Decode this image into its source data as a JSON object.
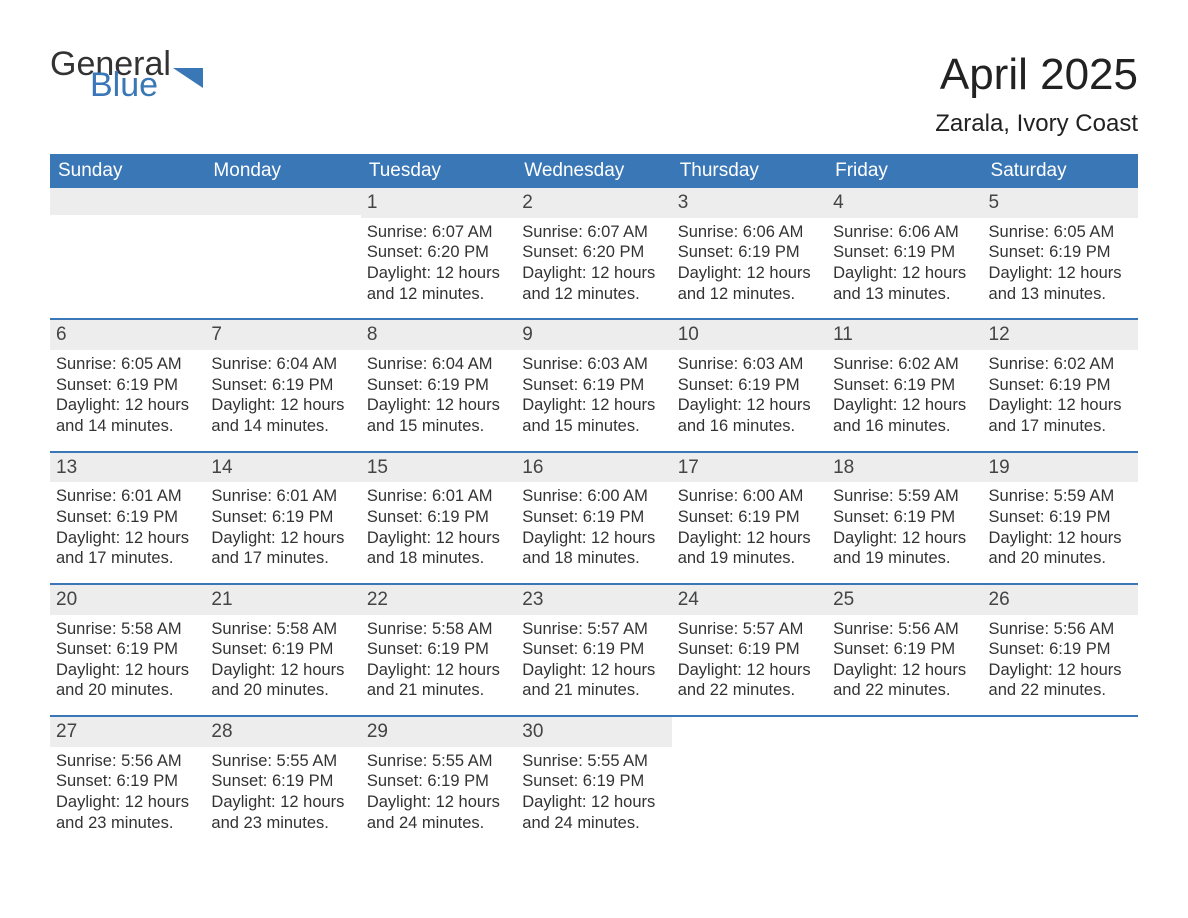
{
  "brand": {
    "word1": "General",
    "word2": "Blue",
    "accent_color": "#3a77b7"
  },
  "title": "April 2025",
  "location": "Zarala, Ivory Coast",
  "colors": {
    "header_bg": "#3a77b7",
    "header_text": "#ffffff",
    "daynum_bg": "#ededed",
    "text": "#333333",
    "week_border": "#3a77b7",
    "page_bg": "#ffffff"
  },
  "typography": {
    "title_fontsize": 44,
    "location_fontsize": 24,
    "dow_fontsize": 19,
    "daynum_fontsize": 19,
    "body_fontsize": 16.5
  },
  "days_of_week": [
    "Sunday",
    "Monday",
    "Tuesday",
    "Wednesday",
    "Thursday",
    "Friday",
    "Saturday"
  ],
  "weeks": [
    [
      {
        "n": "",
        "sunrise": "",
        "sunset": "",
        "daylight": ""
      },
      {
        "n": "",
        "sunrise": "",
        "sunset": "",
        "daylight": ""
      },
      {
        "n": "1",
        "sunrise": "Sunrise: 6:07 AM",
        "sunset": "Sunset: 6:20 PM",
        "daylight": "Daylight: 12 hours and 12 minutes."
      },
      {
        "n": "2",
        "sunrise": "Sunrise: 6:07 AM",
        "sunset": "Sunset: 6:20 PM",
        "daylight": "Daylight: 12 hours and 12 minutes."
      },
      {
        "n": "3",
        "sunrise": "Sunrise: 6:06 AM",
        "sunset": "Sunset: 6:19 PM",
        "daylight": "Daylight: 12 hours and 12 minutes."
      },
      {
        "n": "4",
        "sunrise": "Sunrise: 6:06 AM",
        "sunset": "Sunset: 6:19 PM",
        "daylight": "Daylight: 12 hours and 13 minutes."
      },
      {
        "n": "5",
        "sunrise": "Sunrise: 6:05 AM",
        "sunset": "Sunset: 6:19 PM",
        "daylight": "Daylight: 12 hours and 13 minutes."
      }
    ],
    [
      {
        "n": "6",
        "sunrise": "Sunrise: 6:05 AM",
        "sunset": "Sunset: 6:19 PM",
        "daylight": "Daylight: 12 hours and 14 minutes."
      },
      {
        "n": "7",
        "sunrise": "Sunrise: 6:04 AM",
        "sunset": "Sunset: 6:19 PM",
        "daylight": "Daylight: 12 hours and 14 minutes."
      },
      {
        "n": "8",
        "sunrise": "Sunrise: 6:04 AM",
        "sunset": "Sunset: 6:19 PM",
        "daylight": "Daylight: 12 hours and 15 minutes."
      },
      {
        "n": "9",
        "sunrise": "Sunrise: 6:03 AM",
        "sunset": "Sunset: 6:19 PM",
        "daylight": "Daylight: 12 hours and 15 minutes."
      },
      {
        "n": "10",
        "sunrise": "Sunrise: 6:03 AM",
        "sunset": "Sunset: 6:19 PM",
        "daylight": "Daylight: 12 hours and 16 minutes."
      },
      {
        "n": "11",
        "sunrise": "Sunrise: 6:02 AM",
        "sunset": "Sunset: 6:19 PM",
        "daylight": "Daylight: 12 hours and 16 minutes."
      },
      {
        "n": "12",
        "sunrise": "Sunrise: 6:02 AM",
        "sunset": "Sunset: 6:19 PM",
        "daylight": "Daylight: 12 hours and 17 minutes."
      }
    ],
    [
      {
        "n": "13",
        "sunrise": "Sunrise: 6:01 AM",
        "sunset": "Sunset: 6:19 PM",
        "daylight": "Daylight: 12 hours and 17 minutes."
      },
      {
        "n": "14",
        "sunrise": "Sunrise: 6:01 AM",
        "sunset": "Sunset: 6:19 PM",
        "daylight": "Daylight: 12 hours and 17 minutes."
      },
      {
        "n": "15",
        "sunrise": "Sunrise: 6:01 AM",
        "sunset": "Sunset: 6:19 PM",
        "daylight": "Daylight: 12 hours and 18 minutes."
      },
      {
        "n": "16",
        "sunrise": "Sunrise: 6:00 AM",
        "sunset": "Sunset: 6:19 PM",
        "daylight": "Daylight: 12 hours and 18 minutes."
      },
      {
        "n": "17",
        "sunrise": "Sunrise: 6:00 AM",
        "sunset": "Sunset: 6:19 PM",
        "daylight": "Daylight: 12 hours and 19 minutes."
      },
      {
        "n": "18",
        "sunrise": "Sunrise: 5:59 AM",
        "sunset": "Sunset: 6:19 PM",
        "daylight": "Daylight: 12 hours and 19 minutes."
      },
      {
        "n": "19",
        "sunrise": "Sunrise: 5:59 AM",
        "sunset": "Sunset: 6:19 PM",
        "daylight": "Daylight: 12 hours and 20 minutes."
      }
    ],
    [
      {
        "n": "20",
        "sunrise": "Sunrise: 5:58 AM",
        "sunset": "Sunset: 6:19 PM",
        "daylight": "Daylight: 12 hours and 20 minutes."
      },
      {
        "n": "21",
        "sunrise": "Sunrise: 5:58 AM",
        "sunset": "Sunset: 6:19 PM",
        "daylight": "Daylight: 12 hours and 20 minutes."
      },
      {
        "n": "22",
        "sunrise": "Sunrise: 5:58 AM",
        "sunset": "Sunset: 6:19 PM",
        "daylight": "Daylight: 12 hours and 21 minutes."
      },
      {
        "n": "23",
        "sunrise": "Sunrise: 5:57 AM",
        "sunset": "Sunset: 6:19 PM",
        "daylight": "Daylight: 12 hours and 21 minutes."
      },
      {
        "n": "24",
        "sunrise": "Sunrise: 5:57 AM",
        "sunset": "Sunset: 6:19 PM",
        "daylight": "Daylight: 12 hours and 22 minutes."
      },
      {
        "n": "25",
        "sunrise": "Sunrise: 5:56 AM",
        "sunset": "Sunset: 6:19 PM",
        "daylight": "Daylight: 12 hours and 22 minutes."
      },
      {
        "n": "26",
        "sunrise": "Sunrise: 5:56 AM",
        "sunset": "Sunset: 6:19 PM",
        "daylight": "Daylight: 12 hours and 22 minutes."
      }
    ],
    [
      {
        "n": "27",
        "sunrise": "Sunrise: 5:56 AM",
        "sunset": "Sunset: 6:19 PM",
        "daylight": "Daylight: 12 hours and 23 minutes."
      },
      {
        "n": "28",
        "sunrise": "Sunrise: 5:55 AM",
        "sunset": "Sunset: 6:19 PM",
        "daylight": "Daylight: 12 hours and 23 minutes."
      },
      {
        "n": "29",
        "sunrise": "Sunrise: 5:55 AM",
        "sunset": "Sunset: 6:19 PM",
        "daylight": "Daylight: 12 hours and 24 minutes."
      },
      {
        "n": "30",
        "sunrise": "Sunrise: 5:55 AM",
        "sunset": "Sunset: 6:19 PM",
        "daylight": "Daylight: 12 hours and 24 minutes."
      },
      {
        "n": "",
        "sunrise": "",
        "sunset": "",
        "daylight": ""
      },
      {
        "n": "",
        "sunrise": "",
        "sunset": "",
        "daylight": ""
      },
      {
        "n": "",
        "sunrise": "",
        "sunset": "",
        "daylight": ""
      }
    ]
  ]
}
